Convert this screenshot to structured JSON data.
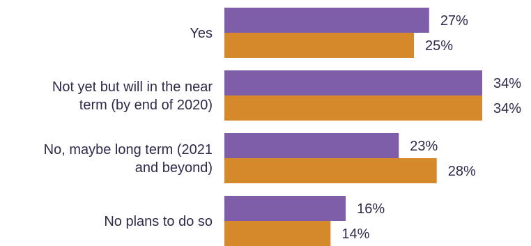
{
  "chart_data": {
    "type": "bar",
    "orientation": "horizontal",
    "categories": [
      [
        "Yes"
      ],
      [
        "Not yet but will in the near",
        "term (by end of 2020)"
      ],
      [
        "No, maybe long term (2021",
        "and beyond)"
      ],
      [
        "No plans to do so"
      ]
    ],
    "series": [
      {
        "values": [
          27,
          34,
          23,
          16
        ],
        "color": "#7e5ea8"
      },
      {
        "values": [
          25,
          34,
          28,
          14
        ],
        "color": "#d6892a"
      }
    ],
    "value_suffix": "%",
    "xlim": [
      0,
      34
    ],
    "grid": false,
    "legend": "none",
    "title": "",
    "xlabel": "",
    "ylabel": ""
  }
}
